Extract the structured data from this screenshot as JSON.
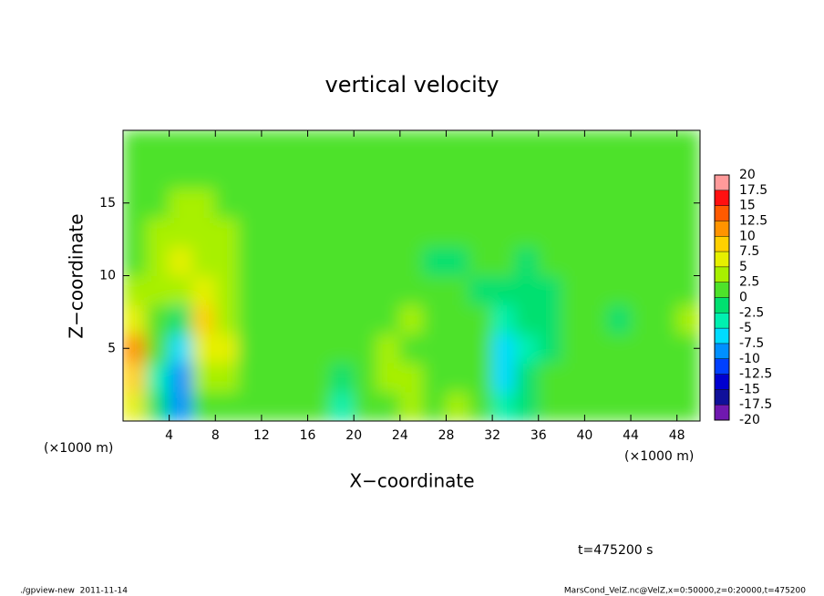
{
  "chart_data": {
    "type": "heatmap",
    "title": "vertical velocity",
    "x_label": "X−coordinate",
    "y_label": "Z−coordinate",
    "x_unit": "(×1000 m)",
    "time_label": "t=475200 s",
    "footer_left": "./gpview-new  2011-11-14",
    "footer_right": "MarsCond_VelZ.nc@VelZ,x=0:50000,z=0:20000,t=475200",
    "xlim": [
      0,
      50
    ],
    "ylim": [
      0,
      20
    ],
    "xticks": [
      4,
      8,
      12,
      16,
      20,
      24,
      28,
      32,
      36,
      40,
      44,
      48
    ],
    "yticks": [
      5,
      10,
      15
    ],
    "x": [
      1,
      3,
      5,
      7,
      9,
      11,
      13,
      15,
      17,
      19,
      21,
      23,
      25,
      27,
      29,
      31,
      33,
      35,
      37,
      39,
      41,
      43,
      45,
      47,
      49
    ],
    "y": [
      1,
      3,
      5,
      7,
      9,
      11,
      13,
      15,
      17,
      19
    ],
    "z": [
      [
        5,
        -2,
        -8,
        2,
        2,
        1,
        1,
        1,
        0,
        -4,
        1,
        2,
        3,
        2,
        3,
        1,
        -3,
        -2,
        1,
        1,
        1,
        1,
        1,
        1,
        1
      ],
      [
        8,
        -3,
        -10,
        3,
        4,
        1,
        1,
        0,
        1,
        -1,
        2,
        3,
        3,
        2,
        2,
        0,
        -6,
        -2,
        1,
        1,
        1,
        1,
        1,
        1,
        2
      ],
      [
        11,
        0,
        -6,
        7,
        5,
        1,
        1,
        1,
        1,
        1,
        1,
        3,
        2,
        2,
        2,
        0,
        -7,
        -3,
        -1,
        1,
        1,
        1,
        1,
        2,
        2
      ],
      [
        6,
        2,
        -2,
        9,
        3,
        1,
        1,
        1,
        1,
        1,
        1,
        2,
        3,
        2,
        1,
        0,
        -3,
        -2,
        -1,
        1,
        1,
        -1,
        1,
        1,
        3
      ],
      [
        3,
        3,
        3,
        6,
        3,
        1,
        1,
        1,
        1,
        1,
        1,
        1,
        1,
        1,
        0,
        -1,
        -1,
        -2,
        -1,
        1,
        0,
        1,
        1,
        1,
        2
      ],
      [
        2,
        3,
        6,
        4,
        3,
        2,
        1,
        1,
        1,
        1,
        0,
        1,
        1,
        -1,
        -1,
        1,
        1,
        -1,
        1,
        1,
        1,
        1,
        1,
        1,
        1
      ],
      [
        2,
        3,
        4,
        4,
        3,
        2,
        1,
        1,
        1,
        1,
        1,
        1,
        1,
        1,
        1,
        1,
        1,
        1,
        1,
        1,
        1,
        1,
        1,
        1,
        1
      ],
      [
        1,
        2,
        3,
        3,
        2,
        1,
        1,
        1,
        1,
        1,
        1,
        1,
        1,
        1,
        1,
        1,
        1,
        1,
        1,
        1,
        1,
        1,
        1,
        1,
        1
      ],
      [
        1,
        1,
        2,
        2,
        1,
        1,
        1,
        1,
        1,
        1,
        1,
        1,
        1,
        1,
        1,
        1,
        1,
        1,
        1,
        1,
        1,
        1,
        1,
        1,
        1
      ],
      [
        1,
        1,
        1,
        1,
        1,
        1,
        1,
        1,
        1,
        1,
        1,
        1,
        1,
        1,
        1,
        1,
        1,
        1,
        1,
        1,
        1,
        1,
        1,
        1,
        1
      ]
    ],
    "levels": [
      -20,
      -17.5,
      -15,
      -12.5,
      -10,
      -7.5,
      -5,
      -2.5,
      0,
      2.5,
      5,
      7.5,
      10,
      12.5,
      15,
      17.5,
      20
    ],
    "colors": [
      "#7018b0",
      "#10109a",
      "#0000d0",
      "#0040ff",
      "#0090ff",
      "#00dcff",
      "#00f0b0",
      "#00e070",
      "#4ee22a",
      "#a8f000",
      "#e6f000",
      "#ffd000",
      "#ff9400",
      "#ff5a00",
      "#ff1010",
      "#ff9a9a"
    ]
  }
}
